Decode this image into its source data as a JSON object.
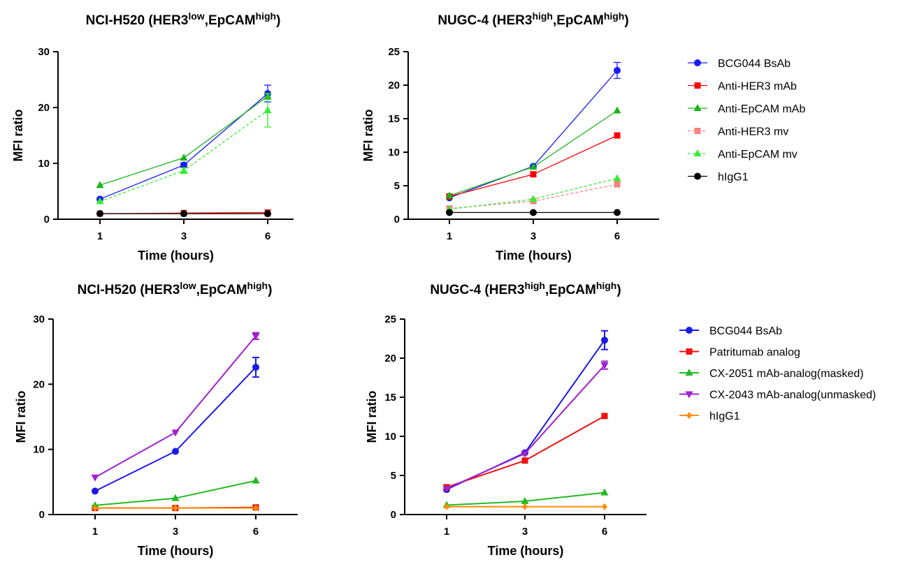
{
  "chart_data": [
    {
      "type": "line",
      "title": "NCI-H520 (HER3",
      "title_sup1": "low",
      "title_mid": ",EpCAM",
      "title_sup2": "high",
      "title_end": ")",
      "xlabel": "Time (hours)",
      "ylabel": "MFI ratio",
      "x": [
        "1",
        "3",
        "6"
      ],
      "ylim": [
        0,
        30
      ],
      "yticks": [
        "0",
        "10",
        "20",
        "30"
      ],
      "series": [
        {
          "name": "BCG044 BsAb",
          "color": "#1a1aff",
          "marker": "circle",
          "dash": false,
          "values": [
            3.6,
            9.7,
            22.5
          ],
          "err": [
            0,
            0.4,
            1.5
          ]
        },
        {
          "name": "Anti-HER3 mAb",
          "color": "#ff0000",
          "marker": "square",
          "dash": false,
          "values": [
            1.0,
            1.1,
            1.2
          ],
          "err": [
            0,
            0,
            0
          ]
        },
        {
          "name": "Anti-EpCAM mAb",
          "color": "#1ab51a",
          "marker": "triangle",
          "dash": false,
          "values": [
            6.1,
            11.0,
            22.0
          ],
          "err": [
            0,
            0,
            0.5
          ]
        },
        {
          "name": "Anti-HER3 mv",
          "color": "#ff8080",
          "marker": "square",
          "dash": true,
          "values": [
            1.0,
            1.0,
            1.0
          ],
          "err": [
            0,
            0,
            0
          ]
        },
        {
          "name": "Anti-EpCAM mv",
          "color": "#33ee33",
          "marker": "triangle",
          "dash": true,
          "values": [
            3.2,
            8.7,
            19.5
          ],
          "err": [
            0,
            0.5,
            3.0
          ]
        },
        {
          "name": "hIgG1",
          "color": "#000000",
          "marker": "circle",
          "dash": false,
          "values": [
            1.0,
            1.0,
            1.0
          ],
          "err": [
            0,
            0,
            0
          ]
        }
      ]
    },
    {
      "type": "line",
      "title": "NUGC-4 (HER3",
      "title_sup1": "high",
      "title_mid": ",EpCAM",
      "title_sup2": "high",
      "title_end": ")",
      "xlabel": "Time (hours)",
      "ylabel": "MFI ratio",
      "x": [
        "1",
        "3",
        "6"
      ],
      "ylim": [
        0,
        25
      ],
      "yticks": [
        "0",
        "5",
        "10",
        "15",
        "20",
        "25"
      ],
      "series": [
        {
          "name": "BCG044 BsAb",
          "color": "#1a1aff",
          "marker": "circle",
          "dash": false,
          "values": [
            3.2,
            7.9,
            22.2
          ],
          "err": [
            0,
            0,
            1.2
          ]
        },
        {
          "name": "Anti-HER3 mAb",
          "color": "#ff0000",
          "marker": "square",
          "dash": false,
          "values": [
            3.4,
            6.7,
            12.5
          ],
          "err": [
            0,
            0,
            0
          ]
        },
        {
          "name": "Anti-EpCAM mAb",
          "color": "#1ab51a",
          "marker": "triangle",
          "dash": false,
          "values": [
            3.5,
            7.8,
            16.2
          ],
          "err": [
            0,
            0,
            0
          ]
        },
        {
          "name": "Anti-HER3 mv",
          "color": "#ff8080",
          "marker": "square",
          "dash": true,
          "values": [
            1.6,
            2.7,
            5.2
          ],
          "err": [
            0,
            0,
            0
          ]
        },
        {
          "name": "Anti-EpCAM mv",
          "color": "#33ee33",
          "marker": "triangle",
          "dash": true,
          "values": [
            1.5,
            3.0,
            6.1
          ],
          "err": [
            0,
            0,
            0
          ]
        },
        {
          "name": "hIgG1",
          "color": "#000000",
          "marker": "circle",
          "dash": false,
          "values": [
            1.0,
            1.0,
            1.0
          ],
          "err": [
            0,
            0,
            0
          ]
        }
      ]
    },
    {
      "type": "line",
      "title": "NCI-H520 (HER3",
      "title_sup1": "low",
      "title_mid": ",EpCAM",
      "title_sup2": "high",
      "title_end": ")",
      "xlabel": "Time (hours)",
      "ylabel": "MFI ratio",
      "x": [
        "1",
        "3",
        "6"
      ],
      "ylim": [
        0,
        30
      ],
      "yticks": [
        "0",
        "10",
        "20",
        "30"
      ],
      "series": [
        {
          "name": "BCG044 BsAb",
          "color": "#1a1ae6",
          "marker": "circle",
          "dash": false,
          "values": [
            3.6,
            9.7,
            22.6
          ],
          "err": [
            0,
            0,
            1.5
          ]
        },
        {
          "name": "Patritumab analog",
          "color": "#ee1111",
          "marker": "square",
          "dash": false,
          "values": [
            1.0,
            1.0,
            1.1
          ],
          "err": [
            0,
            0,
            0
          ]
        },
        {
          "name": "CX-2051 mAb-analog(masked)",
          "color": "#22bb22",
          "marker": "triangle",
          "dash": false,
          "values": [
            1.4,
            2.5,
            5.2
          ],
          "err": [
            0,
            0,
            0
          ]
        },
        {
          "name": "CX-2043 mAb-analog(unmasked)",
          "color": "#a020d0",
          "marker": "triangle-down",
          "dash": false,
          "values": [
            5.7,
            12.6,
            27.4
          ],
          "err": [
            0,
            0,
            0.5
          ]
        },
        {
          "name": "hIgG1",
          "color": "#ff8c00",
          "marker": "diamond",
          "dash": false,
          "values": [
            1.0,
            1.0,
            1.0
          ],
          "err": [
            0,
            0,
            0
          ]
        }
      ]
    },
    {
      "type": "line",
      "title": "NUGC-4 (HER3",
      "title_sup1": "high",
      "title_mid": ",EpCAM",
      "title_sup2": "high",
      "title_end": ")",
      "xlabel": "Time (hours)",
      "ylabel": "MFI ratio",
      "x": [
        "1",
        "3",
        "6"
      ],
      "ylim": [
        0,
        25
      ],
      "yticks": [
        "0",
        "5",
        "10",
        "15",
        "20",
        "25"
      ],
      "series": [
        {
          "name": "BCG044 BsAb",
          "color": "#1a1ae6",
          "marker": "circle",
          "dash": false,
          "values": [
            3.2,
            7.9,
            22.3
          ],
          "err": [
            0,
            0,
            1.2
          ]
        },
        {
          "name": "Patritumab analog",
          "color": "#ee1111",
          "marker": "square",
          "dash": false,
          "values": [
            3.5,
            6.9,
            12.6
          ],
          "err": [
            0,
            0,
            0
          ]
        },
        {
          "name": "CX-2051 mAb-analog(masked)",
          "color": "#22bb22",
          "marker": "triangle",
          "dash": false,
          "values": [
            1.2,
            1.7,
            2.8
          ],
          "err": [
            0,
            0,
            0
          ]
        },
        {
          "name": "CX-2043 mAb-analog(unmasked)",
          "color": "#a020d0",
          "marker": "triangle-down",
          "dash": false,
          "values": [
            3.3,
            7.8,
            19.1
          ],
          "err": [
            0,
            0,
            0.5
          ]
        },
        {
          "name": "hIgG1",
          "color": "#ff8c00",
          "marker": "diamond",
          "dash": false,
          "values": [
            1.0,
            1.0,
            1.0
          ],
          "err": [
            0,
            0,
            0
          ]
        }
      ]
    }
  ],
  "legends": [
    {
      "entries": [
        "BCG044 BsAb",
        "Anti-HER3 mAb",
        "Anti-EpCAM mAb",
        "Anti-HER3 mv",
        "Anti-EpCAM mv",
        "hIgG1"
      ]
    },
    {
      "entries": [
        "BCG044 BsAb",
        "Patritumab analog",
        "CX-2051 mAb-analog(masked)",
        "CX-2043 mAb-analog(unmasked)",
        "hIgG1"
      ]
    }
  ]
}
